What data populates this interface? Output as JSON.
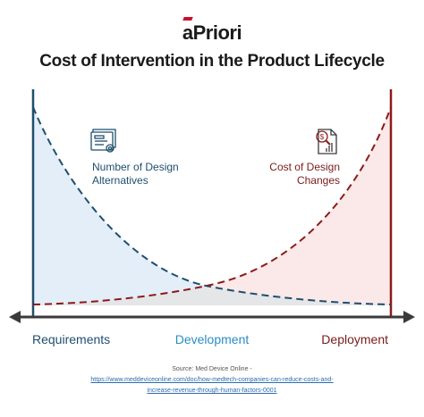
{
  "header": {
    "logo_text": "aPriori",
    "title": "Cost of Intervention in the Product Lifecycle"
  },
  "labels": {
    "design_alternatives": [
      "Number of Design",
      "Alternatives"
    ],
    "design_changes": [
      "Cost of Design",
      "Changes"
    ]
  },
  "stages": {
    "requirements": "Requirements",
    "development": "Development",
    "deployment": "Deployment"
  },
  "source": {
    "label": "Source: Med Device Online -",
    "link_line1": "https://www.meddeviceonline.com/doc/how-medtech-companies-can-reduce-costs-and-",
    "link_line2": "increase-revenue-through-human-factors-0001"
  },
  "colors": {
    "blue_curve": "#1f4e6e",
    "red_curve": "#8b1a1a",
    "blue_fill": "#e3eef8",
    "red_fill": "#fbe8e8",
    "overlap_fill": "#e4e6e8",
    "accent_red": "#c8102e"
  },
  "icons": {
    "left": "document-settings-icon",
    "right": "cost-report-icon"
  }
}
